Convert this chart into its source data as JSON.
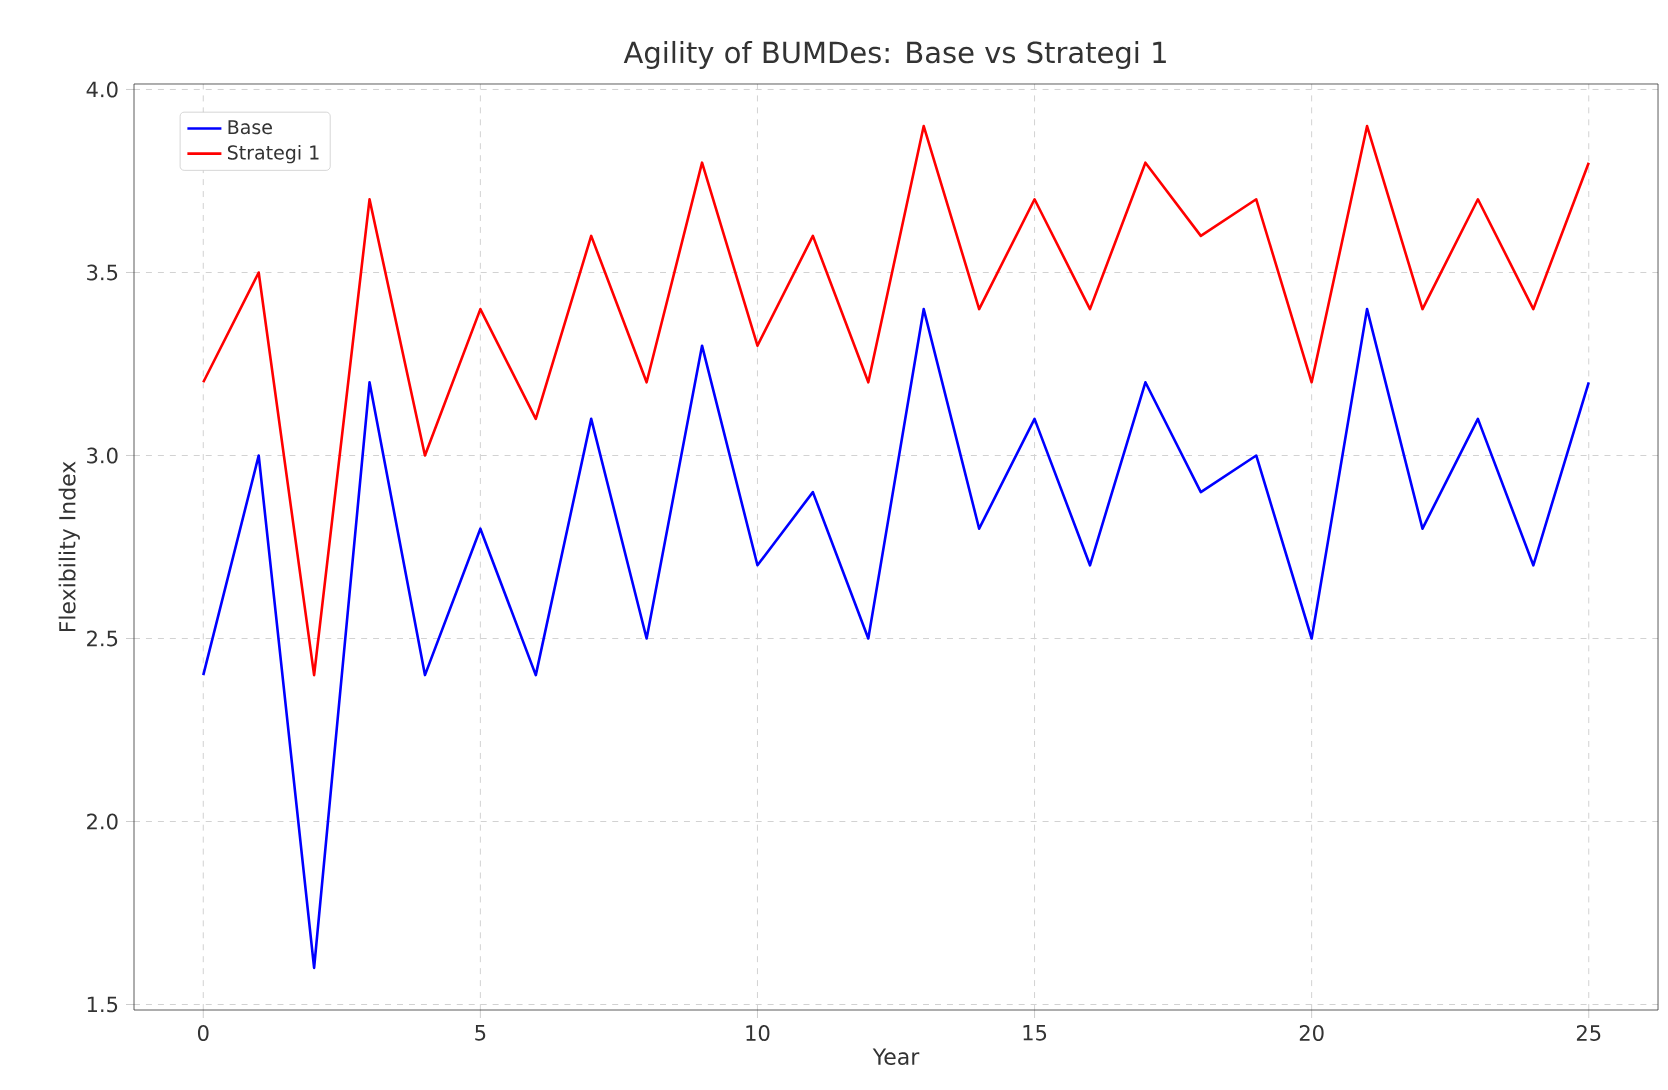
{
  "chart_data": {
    "type": "line",
    "title": "Agility of BUMDes: Base vs Strategi 1",
    "xlabel": "Year",
    "ylabel": "Flexibility Index",
    "x": [
      0,
      1,
      2,
      3,
      4,
      5,
      6,
      7,
      8,
      9,
      10,
      11,
      12,
      13,
      14,
      15,
      16,
      17,
      18,
      19,
      20,
      21,
      22,
      23,
      24,
      25
    ],
    "series": [
      {
        "name": "Base",
        "color": "#0000ff",
        "values": [
          2.4,
          3.0,
          1.6,
          3.2,
          2.4,
          2.8,
          2.4,
          3.1,
          2.5,
          3.3,
          2.7,
          2.9,
          2.5,
          3.4,
          2.8,
          3.1,
          2.7,
          3.2,
          2.9,
          3.0,
          2.5,
          3.4,
          2.8,
          3.1,
          2.7,
          3.2
        ]
      },
      {
        "name": "Strategi 1",
        "color": "#ff0000",
        "values": [
          3.2,
          3.5,
          2.4,
          3.7,
          3.0,
          3.4,
          3.1,
          3.6,
          3.2,
          3.8,
          3.3,
          3.6,
          3.2,
          3.9,
          3.4,
          3.7,
          3.4,
          3.8,
          3.6,
          3.7,
          3.2,
          3.9,
          3.4,
          3.7,
          3.4,
          3.8
        ]
      }
    ],
    "xlim": [
      -1.25,
      26.25
    ],
    "ylim": [
      1.485,
      4.015
    ],
    "xticks": [
      0,
      5,
      10,
      15,
      20,
      25
    ],
    "yticks": [
      1.5,
      {
        "value": 2,
        "label": "2.0"
      },
      2.5,
      {
        "value": 3,
        "label": "3.0"
      },
      3.5,
      {
        "value": 4,
        "label": "4.0"
      }
    ],
    "grid": true,
    "legend": "top left",
    "marker": "none",
    "line_style": "solid"
  }
}
